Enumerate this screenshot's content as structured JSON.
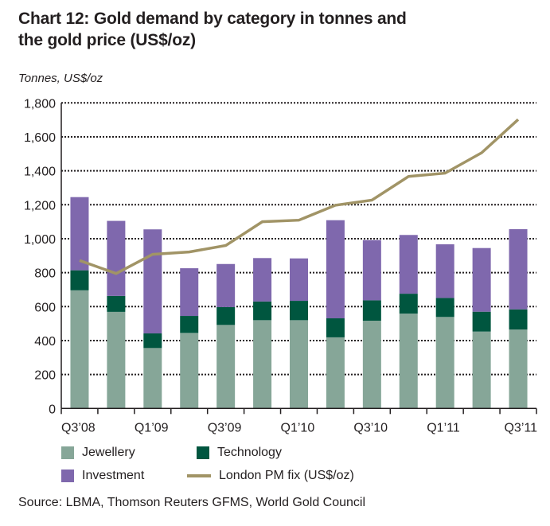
{
  "chart_data": {
    "type": "bar",
    "subtype": "stacked-bar-with-line",
    "title": "Chart 12: Gold demand by category in tonnes and the gold price (US$/oz)",
    "ylabel": "Tonnes, US$/oz",
    "xlabel": "",
    "ylim": [
      0,
      1800
    ],
    "yticks": [
      0,
      200,
      400,
      600,
      800,
      1000,
      1200,
      1400,
      1600,
      1800
    ],
    "ytick_labels": [
      "0",
      "200",
      "400",
      "600",
      "800",
      "1,000",
      "1,200",
      "1,400",
      "1,600",
      "1,800"
    ],
    "grid": true,
    "categories": [
      "Q3'08",
      "Q4'08",
      "Q1'09",
      "Q2'09",
      "Q3'09",
      "Q4'09",
      "Q1'10",
      "Q2'10",
      "Q3'10",
      "Q4'10",
      "Q1'11",
      "Q2'11",
      "Q3'11"
    ],
    "xtick_labels": [
      "Q3’08",
      "",
      "Q1’09",
      "",
      "Q3’09",
      "",
      "Q1’10",
      "",
      "Q3’10",
      "",
      "Q1’11",
      "",
      "Q3’11"
    ],
    "series": [
      {
        "name": "Jewellery",
        "type": "bar",
        "color": "#86a698",
        "values": [
          696,
          569,
          356,
          445,
          492,
          520,
          520,
          419,
          517,
          559,
          539,
          453,
          465
        ]
      },
      {
        "name": "Technology",
        "type": "bar",
        "color": "#00563f",
        "values": [
          118,
          94,
          86,
          100,
          105,
          110,
          114,
          112,
          120,
          117,
          112,
          117,
          119
        ]
      },
      {
        "name": "Investment",
        "type": "bar",
        "color": "#7f68ad",
        "values": [
          431,
          442,
          613,
          281,
          254,
          256,
          250,
          578,
          355,
          346,
          316,
          375,
          472
        ]
      },
      {
        "name": "London PM fix (US$/oz)",
        "type": "line",
        "color": "#a19466",
        "values": [
          872,
          795,
          908,
          922,
          960,
          1100,
          1109,
          1197,
          1227,
          1367,
          1386,
          1506,
          1702
        ]
      }
    ],
    "legend": {
      "placement": "bottom",
      "entries": [
        "Jewellery",
        "Technology",
        "Investment",
        "London PM fix (US$/oz)"
      ]
    }
  },
  "page": {
    "title": "Chart 12: Gold demand by category in tonnes and the gold price (US$/oz)",
    "title_line1": "Chart 12: Gold demand by category in tonnes and",
    "title_line2": "the gold price (US$/oz)",
    "unit_label": "Tonnes, US$/oz",
    "source": "Source: LBMA, Thomson Reuters GFMS, World Gold Council"
  }
}
